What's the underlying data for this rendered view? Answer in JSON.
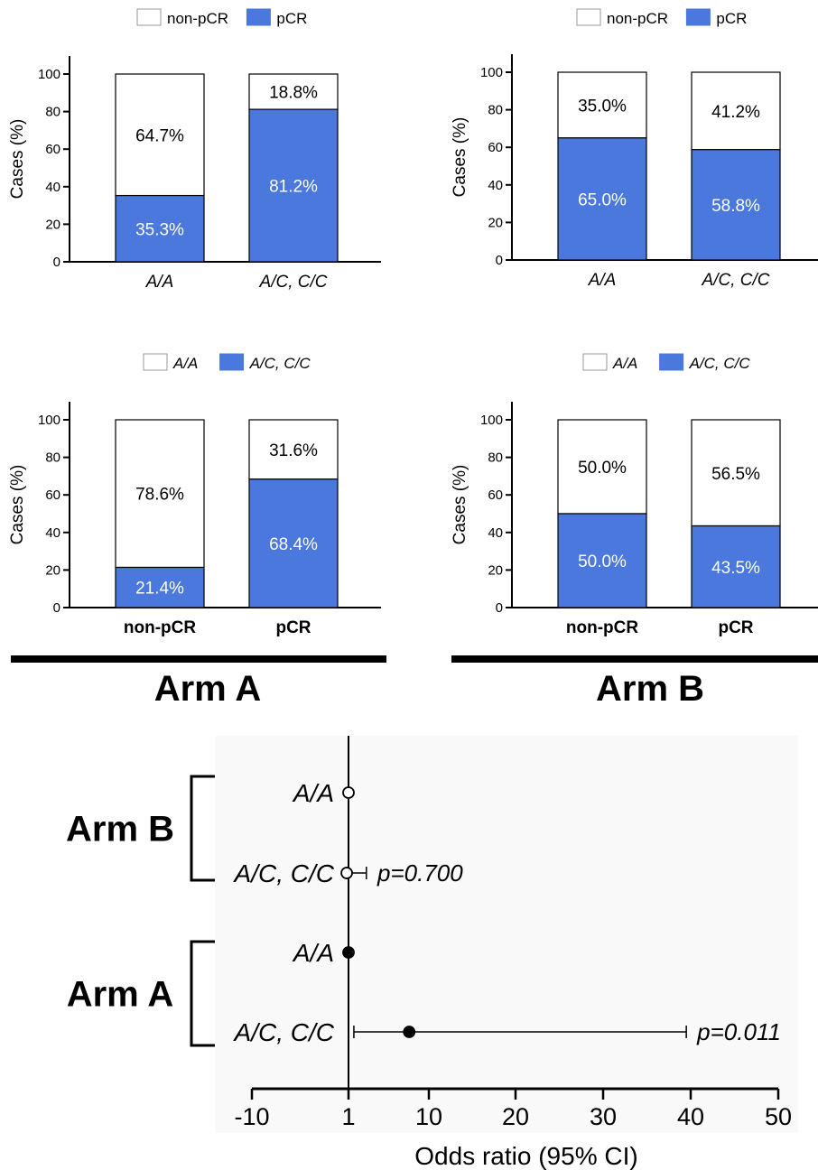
{
  "chart_data": [
    {
      "type": "bar",
      "stacked": true,
      "percent_stacked": true,
      "panel": "Arm A, genotype",
      "categories": [
        "A/A",
        "A/C, C/C"
      ],
      "ylabel": "Cases (%)",
      "ylim": [
        0,
        100
      ],
      "yticks": [
        0,
        20,
        40,
        60,
        80,
        100
      ],
      "legend_position": "top",
      "series": [
        {
          "name": "pCR",
          "values": [
            35.3,
            81.2
          ],
          "labels": [
            "35.3%",
            "81.2%"
          ]
        },
        {
          "name": "non-pCR",
          "values": [
            64.7,
            18.8
          ],
          "labels": [
            "64.7%",
            "18.8%"
          ]
        }
      ]
    },
    {
      "type": "bar",
      "stacked": true,
      "percent_stacked": true,
      "panel": "Arm B, genotype",
      "categories": [
        "A/A",
        "A/C, C/C"
      ],
      "ylabel": "Cases (%)",
      "ylim": [
        0,
        100
      ],
      "yticks": [
        0,
        20,
        40,
        60,
        80,
        100
      ],
      "legend_position": "top",
      "series": [
        {
          "name": "pCR",
          "values": [
            65.0,
            58.8
          ],
          "labels": [
            "65.0%",
            "58.8%"
          ]
        },
        {
          "name": "non-pCR",
          "values": [
            35.0,
            41.2
          ],
          "labels": [
            "35.0%",
            "41.2%"
          ]
        }
      ]
    },
    {
      "type": "bar",
      "stacked": true,
      "percent_stacked": true,
      "panel": "Arm A, response",
      "categories": [
        "non-pCR",
        "pCR"
      ],
      "ylabel": "Cases (%)",
      "ylim": [
        0,
        100
      ],
      "yticks": [
        0,
        20,
        40,
        60,
        80,
        100
      ],
      "legend_position": "top",
      "series": [
        {
          "name": "A/C, C/C",
          "values": [
            21.4,
            68.4
          ],
          "labels": [
            "21.4%",
            "68.4%"
          ]
        },
        {
          "name": "A/A",
          "values": [
            78.6,
            31.6
          ],
          "labels": [
            "78.6%",
            "31.6%"
          ]
        }
      ]
    },
    {
      "type": "bar",
      "stacked": true,
      "percent_stacked": true,
      "panel": "Arm B, response",
      "categories": [
        "non-pCR",
        "pCR"
      ],
      "ylabel": "Cases (%)",
      "ylim": [
        0,
        100
      ],
      "yticks": [
        0,
        20,
        40,
        60,
        80,
        100
      ],
      "legend_position": "top",
      "series": [
        {
          "name": "A/C, C/C",
          "values": [
            50.0,
            43.5
          ],
          "labels": [
            "50.0%",
            "43.5%"
          ]
        },
        {
          "name": "A/A",
          "values": [
            50.0,
            56.5
          ],
          "labels": [
            "50.0%",
            "56.5%"
          ]
        }
      ]
    },
    {
      "type": "forest",
      "xlabel": "Odds ratio (95% CI)",
      "xticks": [
        -10,
        1,
        10,
        20,
        30,
        40,
        50
      ],
      "xlim": [
        -10,
        50
      ],
      "reference_line": 1,
      "groups": [
        {
          "name": "Arm B",
          "marker": "open",
          "rows": [
            {
              "label": "A/A",
              "or": 1.0,
              "ci": null,
              "p": ""
            },
            {
              "label": "A/C, C/C",
              "or": 0.8,
              "ci": [
                0.8,
                3.0
              ],
              "p": "p=0.700"
            }
          ]
        },
        {
          "name": "Arm A",
          "marker": "filled",
          "rows": [
            {
              "label": "A/A",
              "or": 1.0,
              "ci": null,
              "p": ""
            },
            {
              "label": "A/C, C/C",
              "or": 7.8,
              "ci": [
                1.6,
                39.5
              ],
              "p": "p=0.011"
            }
          ]
        }
      ]
    }
  ],
  "arm_labels": [
    "Arm A",
    "Arm B"
  ],
  "colors": {
    "pcr": "#4a78dc",
    "nonpcr": "#ffffff",
    "forest_bg": "#f9f9f9"
  }
}
